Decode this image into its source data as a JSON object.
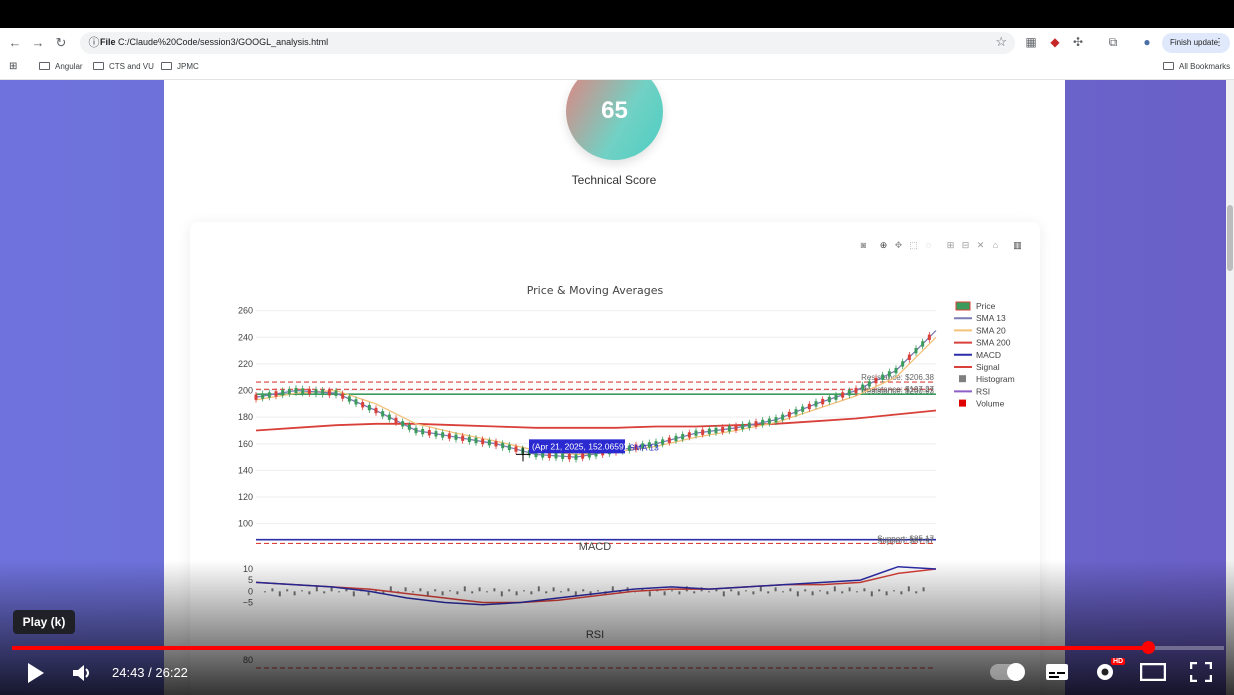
{
  "browser": {
    "url_scheme": "File",
    "url": "C:/Claude%20Code/session3/GOOGL_analysis.html",
    "finish_update": "Finish update",
    "bookmarks": [
      "Angular",
      "CTS and VU",
      "JPMC"
    ],
    "all_bookmarks": "All Bookmarks"
  },
  "score": {
    "value": "65",
    "label": "Technical Score"
  },
  "chart_data": [
    {
      "type": "line",
      "title": "Price & Moving Averages",
      "y_ticks": [
        "260",
        "240",
        "220",
        "200",
        "180",
        "160",
        "140",
        "120",
        "100"
      ],
      "ylim": [
        90,
        265
      ],
      "legend": [
        "Price",
        "SMA 13",
        "SMA 20",
        "SMA 200",
        "MACD",
        "Signal",
        "Histogram",
        "RSI",
        "Volume"
      ],
      "legend_colors": [
        "#3a9b5c",
        "#7b7bb5",
        "#f3c27a",
        "#d9403a",
        "#2c2ca8",
        "#d9403a",
        "#7f7f7f",
        "#8c5ec7",
        "#e00000"
      ],
      "legend_position": "top-right",
      "levels": [
        {
          "label": "Resistance: $206.38",
          "value": 206.38
        },
        {
          "label": "Resistance: $200.93",
          "value": 200.93
        },
        {
          "label": "Resistance: $197.27",
          "value": 197.27
        },
        {
          "label": "Support: $87.97",
          "value": 87.97
        },
        {
          "label": "Support: $85.17",
          "value": 85.17
        }
      ],
      "sma200": [
        170,
        172,
        174,
        175,
        175,
        174,
        173,
        172,
        172,
        172,
        173,
        173,
        174,
        175,
        177,
        179,
        182,
        185
      ],
      "sma13": [
        195,
        200,
        198,
        185,
        170,
        165,
        160,
        152,
        150,
        155,
        160,
        168,
        172,
        178,
        190,
        200,
        215,
        245
      ],
      "sma20": [
        193,
        198,
        200,
        190,
        175,
        168,
        162,
        155,
        152,
        154,
        158,
        165,
        170,
        176,
        186,
        196,
        210,
        240
      ],
      "hover_label": "(Apr 21, 2025, 152.0659)",
      "hover_series": "SMA 13"
    },
    {
      "type": "line",
      "title": "MACD",
      "y_ticks": [
        "10",
        "5",
        "0",
        "−5"
      ],
      "ylim": [
        -7,
        14
      ],
      "macd": [
        4,
        3,
        2,
        0,
        -3,
        -5,
        -6,
        -5,
        -3,
        -1,
        1,
        2,
        1,
        2,
        3,
        4,
        5,
        11,
        10
      ],
      "signal": [
        4,
        3,
        2,
        1,
        -1,
        -3,
        -5,
        -5,
        -4,
        -2,
        0,
        1,
        1,
        2,
        3,
        3,
        4,
        8,
        10
      ]
    },
    {
      "type": "line",
      "title": "RSI",
      "y_ticks": [
        "80"
      ],
      "ylim": [
        20,
        85
      ]
    }
  ],
  "player": {
    "tooltip": "Play (k)",
    "time": "24:43 / 26:22",
    "progress": 0.937,
    "hd": "HD"
  }
}
